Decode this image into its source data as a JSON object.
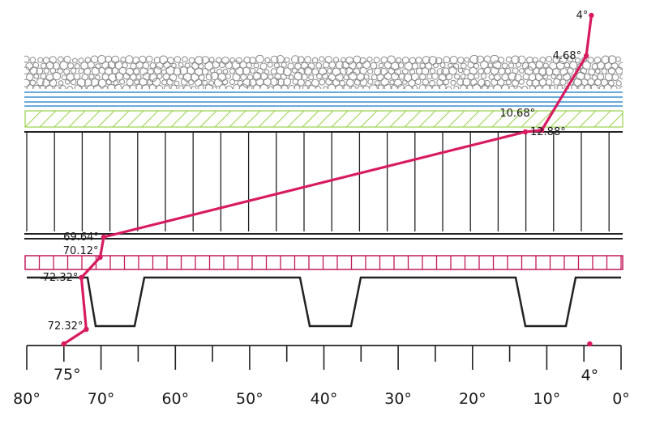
{
  "chart_data": {
    "type": "line",
    "x_unit": "°",
    "xlim": [
      80,
      0
    ],
    "x_ticks": [
      80,
      70,
      60,
      50,
      40,
      30,
      20,
      10,
      0
    ],
    "x_tick_labels": [
      "80°",
      "70°",
      "60°",
      "50°",
      "40°",
      "30°",
      "20°",
      "10°",
      "0°"
    ],
    "series": [
      {
        "color": "#d81b60",
        "points": [
          {
            "value": 4,
            "label": "4°"
          },
          {
            "value": 4.68,
            "label": "4.68°"
          },
          {
            "value": 10.68,
            "label": "10.68°"
          },
          {
            "value": 12.88,
            "label": "12.88°"
          },
          {
            "value": 69.64,
            "label": "69.64°"
          },
          {
            "value": 70.12,
            "label": "70.12°"
          },
          {
            "value": 72.32,
            "label": "72.32°"
          },
          {
            "value": 72.32,
            "label": "72.32°"
          },
          {
            "value": 75,
            "label": "75°"
          }
        ]
      }
    ],
    "markers": [
      {
        "value": 4,
        "label": "4°"
      }
    ]
  },
  "layers": [
    {
      "type": "gravel",
      "color": "#8a8a8a"
    },
    {
      "type": "membrane",
      "color": "#3a8fd0"
    },
    {
      "type": "hatched",
      "color": "#9ad14b"
    },
    {
      "type": "insulation",
      "color": "#222222"
    },
    {
      "type": "vapour-layer",
      "color": "#222222"
    },
    {
      "type": "grid-strip",
      "color": "#c2185b"
    },
    {
      "type": "deck-profile",
      "color": "#222222"
    }
  ]
}
